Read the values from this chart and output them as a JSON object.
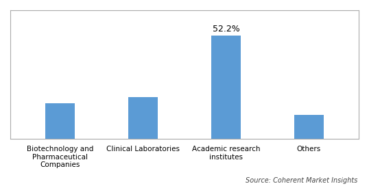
{
  "categories": [
    "Biotechnology and\nPharmaceutical\nCompanies",
    "Clinical Laboratories",
    "Academic research\ninstitutes",
    "Others"
  ],
  "values": [
    18,
    21,
    52.2,
    12
  ],
  "bar_color": "#5b9bd5",
  "annotation_index": 2,
  "annotation_text": "52.2%",
  "ylim": [
    0,
    65
  ],
  "source_text": "Source: Coherent Market Insights",
  "bar_width": 0.35,
  "background_color": "#ffffff",
  "tick_fontsize": 7.5,
  "annotation_fontsize": 9,
  "source_fontsize": 7
}
